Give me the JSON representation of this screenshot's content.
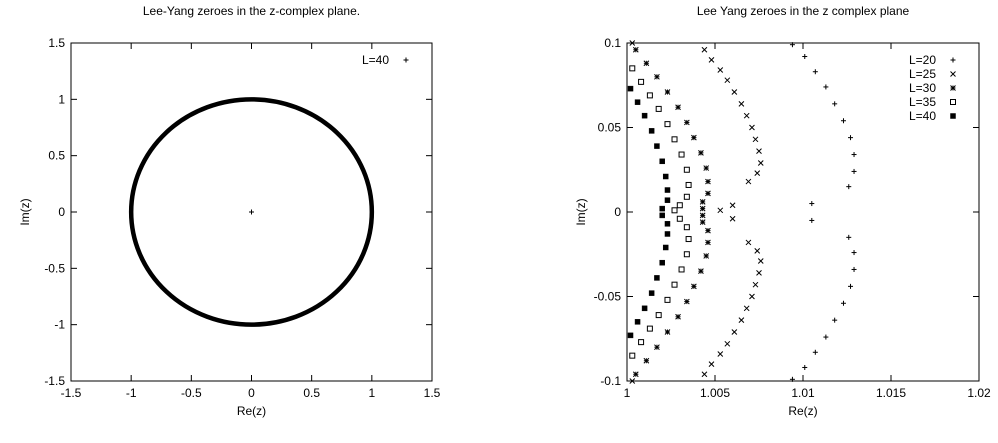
{
  "chart_data": [
    {
      "type": "scatter",
      "title": "Lee-Yang zeroes in the z-complex plane.",
      "xlabel": "Re(z)",
      "ylabel": "Im(z)",
      "xlim": [
        -1.5,
        1.5
      ],
      "ylim": [
        -1.5,
        1.5
      ],
      "xticks": [
        "-1.5",
        "-1",
        "-0.5",
        "0",
        "0.5",
        "1",
        "1.5"
      ],
      "yticks": [
        "-1.5",
        "-1",
        "-0.5",
        "0",
        "0.5",
        "1",
        "1.5"
      ],
      "grid": false,
      "legend_position": "top-right",
      "series": [
        {
          "name": "L=40",
          "marker": "plus",
          "description_shape": "unit circle of zeros",
          "radius": 1.0,
          "points": [
            [
              0,
              0
            ]
          ]
        }
      ]
    },
    {
      "type": "scatter",
      "title": "Lee Yang zeroes in the z complex plane",
      "xlabel": "Re(z)",
      "ylabel": "Im(z)",
      "xlim": [
        1,
        1.02
      ],
      "ylim": [
        -0.1,
        0.1
      ],
      "xticks": [
        "1",
        "1.005",
        "1.01",
        "1.015",
        "1.02"
      ],
      "yticks": [
        "-0.1",
        "-0.05",
        "0",
        "0.05",
        "0.1"
      ],
      "grid": false,
      "legend_position": "top-right",
      "series": [
        {
          "name": "L=20",
          "marker": "plus",
          "points": [
            [
              1.0094,
              0.099
            ],
            [
              1.0101,
              0.092
            ],
            [
              1.0107,
              0.083
            ],
            [
              1.0113,
              0.074
            ],
            [
              1.0118,
              0.064
            ],
            [
              1.0123,
              0.054
            ],
            [
              1.0127,
              0.044
            ],
            [
              1.0129,
              0.034
            ],
            [
              1.0129,
              0.024
            ],
            [
              1.0126,
              0.015
            ],
            [
              1.0105,
              0.005
            ],
            [
              1.0105,
              -0.005
            ],
            [
              1.0126,
              -0.015
            ],
            [
              1.0129,
              -0.024
            ],
            [
              1.0129,
              -0.034
            ],
            [
              1.0127,
              -0.044
            ],
            [
              1.0123,
              -0.054
            ],
            [
              1.0118,
              -0.064
            ],
            [
              1.0113,
              -0.074
            ],
            [
              1.0107,
              -0.083
            ],
            [
              1.0101,
              -0.092
            ],
            [
              1.0094,
              -0.099
            ]
          ]
        },
        {
          "name": "L=25",
          "marker": "cross",
          "points": [
            [
              1.0044,
              0.096
            ],
            [
              1.0048,
              0.09
            ],
            [
              1.0053,
              0.084
            ],
            [
              1.0057,
              0.078
            ],
            [
              1.0061,
              0.071
            ],
            [
              1.0065,
              0.064
            ],
            [
              1.0068,
              0.057
            ],
            [
              1.0071,
              0.05
            ],
            [
              1.0073,
              0.043
            ],
            [
              1.0075,
              0.036
            ],
            [
              1.0076,
              0.029
            ],
            [
              1.0074,
              0.023
            ],
            [
              1.0069,
              0.018
            ],
            [
              1.006,
              0.004
            ],
            [
              1.0053,
              0.001
            ],
            [
              1.006,
              -0.004
            ],
            [
              1.0069,
              -0.018
            ],
            [
              1.0074,
              -0.023
            ],
            [
              1.0076,
              -0.029
            ],
            [
              1.0075,
              -0.036
            ],
            [
              1.0073,
              -0.043
            ],
            [
              1.0071,
              -0.05
            ],
            [
              1.0068,
              -0.057
            ],
            [
              1.0065,
              -0.064
            ],
            [
              1.0061,
              -0.071
            ],
            [
              1.0057,
              -0.078
            ],
            [
              1.0053,
              -0.084
            ],
            [
              1.0048,
              -0.09
            ],
            [
              1.0044,
              -0.096
            ],
            [
              1.0003,
              -0.1
            ],
            [
              1.0003,
              0.1
            ]
          ]
        },
        {
          "name": "L=30",
          "marker": "star",
          "points": [
            [
              1.0005,
              0.096
            ],
            [
              1.0011,
              0.088
            ],
            [
              1.0017,
              0.08
            ],
            [
              1.0023,
              0.071
            ],
            [
              1.0029,
              0.062
            ],
            [
              1.0034,
              0.053
            ],
            [
              1.0038,
              0.044
            ],
            [
              1.0042,
              0.035
            ],
            [
              1.0045,
              0.026
            ],
            [
              1.0046,
              0.018
            ],
            [
              1.0046,
              0.011
            ],
            [
              1.0043,
              0.006
            ],
            [
              1.0043,
              0.002
            ],
            [
              1.0043,
              -0.002
            ],
            [
              1.0043,
              -0.006
            ],
            [
              1.0046,
              -0.011
            ],
            [
              1.0046,
              -0.018
            ],
            [
              1.0045,
              -0.026
            ],
            [
              1.0042,
              -0.035
            ],
            [
              1.0038,
              -0.044
            ],
            [
              1.0034,
              -0.053
            ],
            [
              1.0029,
              -0.062
            ],
            [
              1.0023,
              -0.071
            ],
            [
              1.0017,
              -0.08
            ],
            [
              1.0011,
              -0.088
            ],
            [
              1.0005,
              -0.096
            ]
          ]
        },
        {
          "name": "L=35",
          "marker": "box",
          "points": [
            [
              1.0003,
              0.085
            ],
            [
              1.0008,
              0.077
            ],
            [
              1.0013,
              0.069
            ],
            [
              1.0018,
              0.061
            ],
            [
              1.0023,
              0.052
            ],
            [
              1.0027,
              0.043
            ],
            [
              1.0031,
              0.034
            ],
            [
              1.0034,
              0.025
            ],
            [
              1.0035,
              0.016
            ],
            [
              1.0034,
              0.009
            ],
            [
              1.003,
              0.004
            ],
            [
              1.0027,
              0.001
            ],
            [
              1.003,
              -0.004
            ],
            [
              1.0034,
              -0.009
            ],
            [
              1.0035,
              -0.016
            ],
            [
              1.0034,
              -0.025
            ],
            [
              1.0031,
              -0.034
            ],
            [
              1.0027,
              -0.043
            ],
            [
              1.0023,
              -0.052
            ],
            [
              1.0018,
              -0.061
            ],
            [
              1.0013,
              -0.069
            ],
            [
              1.0008,
              -0.077
            ],
            [
              1.0003,
              -0.085
            ]
          ]
        },
        {
          "name": "L=40",
          "marker": "filled-box",
          "points": [
            [
              1.0002,
              0.073
            ],
            [
              1.0006,
              0.065
            ],
            [
              1.001,
              0.057
            ],
            [
              1.0014,
              0.048
            ],
            [
              1.0017,
              0.039
            ],
            [
              1.002,
              0.03
            ],
            [
              1.0022,
              0.021
            ],
            [
              1.0023,
              0.013
            ],
            [
              1.0023,
              0.007
            ],
            [
              1.002,
              0.002
            ],
            [
              1.002,
              -0.002
            ],
            [
              1.0023,
              -0.007
            ],
            [
              1.0023,
              -0.013
            ],
            [
              1.0022,
              -0.021
            ],
            [
              1.002,
              -0.03
            ],
            [
              1.0017,
              -0.039
            ],
            [
              1.0014,
              -0.048
            ],
            [
              1.001,
              -0.057
            ],
            [
              1.0006,
              -0.065
            ],
            [
              1.0002,
              -0.073
            ]
          ]
        }
      ]
    }
  ]
}
